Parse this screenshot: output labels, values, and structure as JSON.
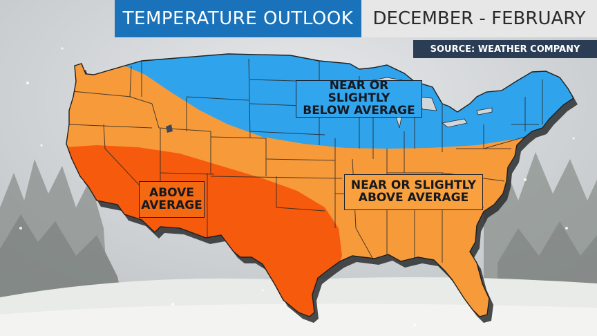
{
  "header": {
    "title": "TEMPERATURE OUTLOOK",
    "period": "DECEMBER - FEBRUARY",
    "source": "SOURCE: WEATHER COMPANY"
  },
  "legend_regions": [
    {
      "id": "below",
      "lines": [
        "NEAR OR SLIGHTLY",
        "BELOW AVERAGE"
      ],
      "color": "#2fa3ec"
    },
    {
      "id": "above",
      "lines": [
        "ABOVE",
        "AVERAGE"
      ],
      "color": "#f55a0d"
    },
    {
      "id": "slightly_above",
      "lines": [
        "NEAR OR SLIGHTLY",
        "ABOVE AVERAGE"
      ],
      "color": "#f79a3a"
    }
  ],
  "colors": {
    "title_bar": "#1a73ba",
    "period_bar": "#e7e7e7",
    "source_bar": "#2b3c55",
    "below_region": "#2fa3ec",
    "above_region": "#f55a0d",
    "slightly_above_region": "#f79a3a",
    "state_border": "#2a2a2a"
  }
}
